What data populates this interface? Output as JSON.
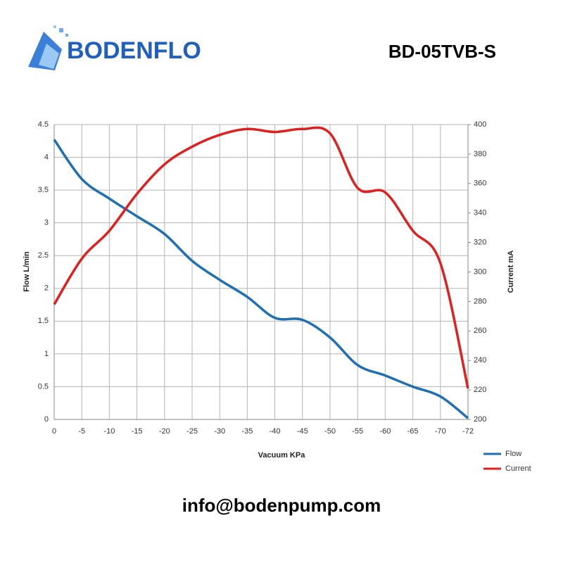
{
  "brand": "BODENFLO",
  "model": "BD-05TVB-S",
  "email": "info@bodenpump.com",
  "chart_data": {
    "type": "line",
    "x_label": "Vacuum  KPa",
    "y_label": "Flow  L/min",
    "y2_label": "Current mA",
    "categories": [
      "0",
      "-5",
      "-10",
      "-15",
      "-20",
      "-25",
      "-30",
      "-35",
      "-40",
      "-45",
      "-50",
      "-55",
      "-60",
      "-65",
      "-70",
      "-72"
    ],
    "series": [
      {
        "name": "Flow",
        "color": "#1f6fb5",
        "values": [
          4.27,
          3.67,
          3.37,
          3.1,
          2.83,
          2.42,
          2.13,
          1.87,
          1.55,
          1.52,
          1.25,
          0.83,
          0.67,
          0.5,
          0.35,
          0.02
        ]
      },
      {
        "name": "Current",
        "color": "#e0201f",
        "axis": "y2",
        "values": [
          278,
          309,
          328,
          353,
          373,
          385,
          393,
          397,
          395,
          397,
          394,
          357,
          354,
          328,
          306,
          221
        ]
      }
    ],
    "ylim": [
      0,
      4.5
    ],
    "yticks": [
      0,
      0.5,
      1,
      1.5,
      2,
      2.5,
      3,
      3.5,
      4,
      4.5
    ],
    "y2lim": [
      200,
      400
    ],
    "y2ticks": [
      200,
      220,
      240,
      260,
      280,
      300,
      320,
      340,
      360,
      380,
      400
    ],
    "grid": true,
    "legend": "bottom-right"
  }
}
